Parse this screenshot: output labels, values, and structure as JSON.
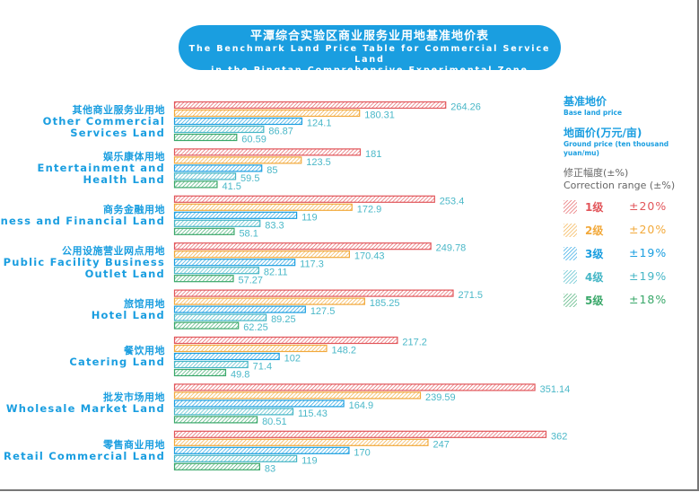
{
  "title": {
    "cn": "平潭综合实验区商业服务业用地基准地价表",
    "en_line1": "The Benchmark Land Price Table for Commercial Service Land",
    "en_line2": "in the Pingtan Comprehensive Experimental Zone"
  },
  "legend": {
    "title_cn": "基准地价",
    "title_en": "Base land price",
    "unit_cn": "地面价(万元/亩)",
    "unit_en": "Ground price (ten thousand yuan/mu)",
    "correction_cn": "修正幅度(±%)",
    "correction_en": "Correction range (±%)",
    "items": [
      {
        "grade": "1级",
        "range": "±20%",
        "color": "#e2555a"
      },
      {
        "grade": "2级",
        "range": "±20%",
        "color": "#f2a93b"
      },
      {
        "grade": "3级",
        "range": "±19%",
        "color": "#1a9ee0"
      },
      {
        "grade": "4级",
        "range": "±19%",
        "color": "#45b6c6"
      },
      {
        "grade": "5级",
        "range": "±18%",
        "color": "#3aa86a"
      }
    ]
  },
  "chart_data": {
    "type": "bar",
    "orientation": "horizontal",
    "pattern": "hatched",
    "value_label_color": "#4bb8c8",
    "categories": [
      {
        "cn": "其他商业服务业用地",
        "en": [
          "Other Commercial",
          "Services Land"
        ]
      },
      {
        "cn": "娱乐康体用地",
        "en": [
          "Entertainment and",
          "Health Land"
        ]
      },
      {
        "cn": "商务金融用地",
        "en": [
          "Business and Financial Land"
        ]
      },
      {
        "cn": "公用设施营业网点用地",
        "en": [
          "Public Facility Business",
          "Outlet Land"
        ]
      },
      {
        "cn": "旅馆用地",
        "en": [
          "Hotel Land"
        ]
      },
      {
        "cn": "餐饮用地",
        "en": [
          "Catering Land"
        ]
      },
      {
        "cn": "批发市场用地",
        "en": [
          "Wholesale Market Land"
        ]
      },
      {
        "cn": "零售商业用地",
        "en": [
          "Retail Commercial Land"
        ]
      }
    ],
    "series": [
      {
        "name": "1级",
        "values": [
          "264.26",
          "181",
          "253.4",
          "249.78",
          "271.5",
          "217.2",
          "351.14",
          "362"
        ]
      },
      {
        "name": "2级",
        "values": [
          "180.31",
          "123.5",
          "172.9",
          "170.43",
          "185.25",
          "148.2",
          "239.59",
          "247"
        ]
      },
      {
        "name": "3级",
        "values": [
          "124.1",
          "85",
          "119",
          "117.3",
          "127.5",
          "102",
          "164.9",
          "170"
        ]
      },
      {
        "name": "4级",
        "values": [
          "86.87",
          "59.5",
          "83.3",
          "82.11",
          "89.25",
          "71.4",
          "115.43",
          "119"
        ]
      },
      {
        "name": "5级",
        "values": [
          "60.59",
          "41.5",
          "58.1",
          "57.27",
          "62.25",
          "49.8",
          "80.51",
          "83"
        ]
      }
    ],
    "xlim": [
      0,
      362
    ],
    "grid": false,
    "legend_position": "right"
  }
}
